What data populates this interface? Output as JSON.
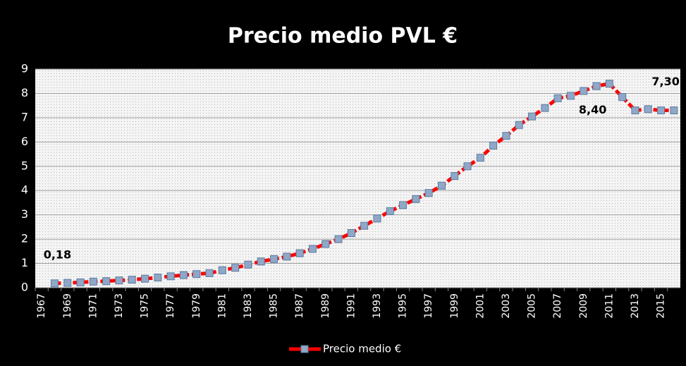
{
  "chart_data": {
    "type": "line",
    "title": "Precio medio PVL €",
    "categories": [
      "1967",
      null,
      "1969",
      null,
      "1971",
      null,
      "1973",
      null,
      "1975",
      null,
      "1977",
      null,
      "1979",
      null,
      "1981",
      null,
      "1983",
      null,
      "1985",
      null,
      "1987",
      null,
      "1989",
      null,
      "1991",
      null,
      "1993",
      null,
      "1995",
      null,
      "1997",
      null,
      "1999",
      null,
      "2001",
      null,
      "2003",
      null,
      "2005",
      null,
      "2007",
      null,
      "2009",
      null,
      "2011",
      null,
      "2013",
      null,
      "2015",
      null
    ],
    "series": [
      {
        "name": "Precio medio €",
        "color": "#ff0000",
        "marker_color": "#8fa8c8",
        "values": [
          null,
          0.18,
          0.2,
          0.22,
          0.25,
          0.27,
          0.3,
          0.33,
          0.37,
          0.42,
          0.47,
          0.52,
          0.56,
          0.6,
          0.72,
          0.82,
          0.95,
          1.08,
          1.18,
          1.28,
          1.42,
          1.6,
          1.8,
          2.0,
          2.25,
          2.55,
          2.85,
          3.15,
          3.4,
          3.65,
          3.9,
          4.2,
          4.6,
          5.0,
          5.35,
          5.85,
          6.25,
          6.7,
          7.05,
          7.4,
          7.8,
          7.9,
          8.1,
          8.3,
          8.4,
          7.85,
          7.3,
          7.35,
          7.3,
          7.3
        ],
        "value_labels": [
          null,
          "0,18",
          null,
          null,
          null,
          null,
          null,
          null,
          null,
          null,
          null,
          null,
          null,
          null,
          null,
          null,
          null,
          null,
          null,
          null,
          null,
          null,
          null,
          null,
          null,
          null,
          null,
          null,
          null,
          null,
          null,
          null,
          null,
          null,
          null,
          null,
          null,
          null,
          null,
          null,
          null,
          null,
          null,
          null,
          "8,40",
          null,
          null,
          null,
          null,
          "7,30"
        ]
      }
    ],
    "ylim": [
      0,
      9
    ],
    "yticks": [
      0,
      1,
      2,
      3,
      4,
      5,
      6,
      7,
      8,
      9
    ],
    "grid": true,
    "legend": "bottom"
  }
}
